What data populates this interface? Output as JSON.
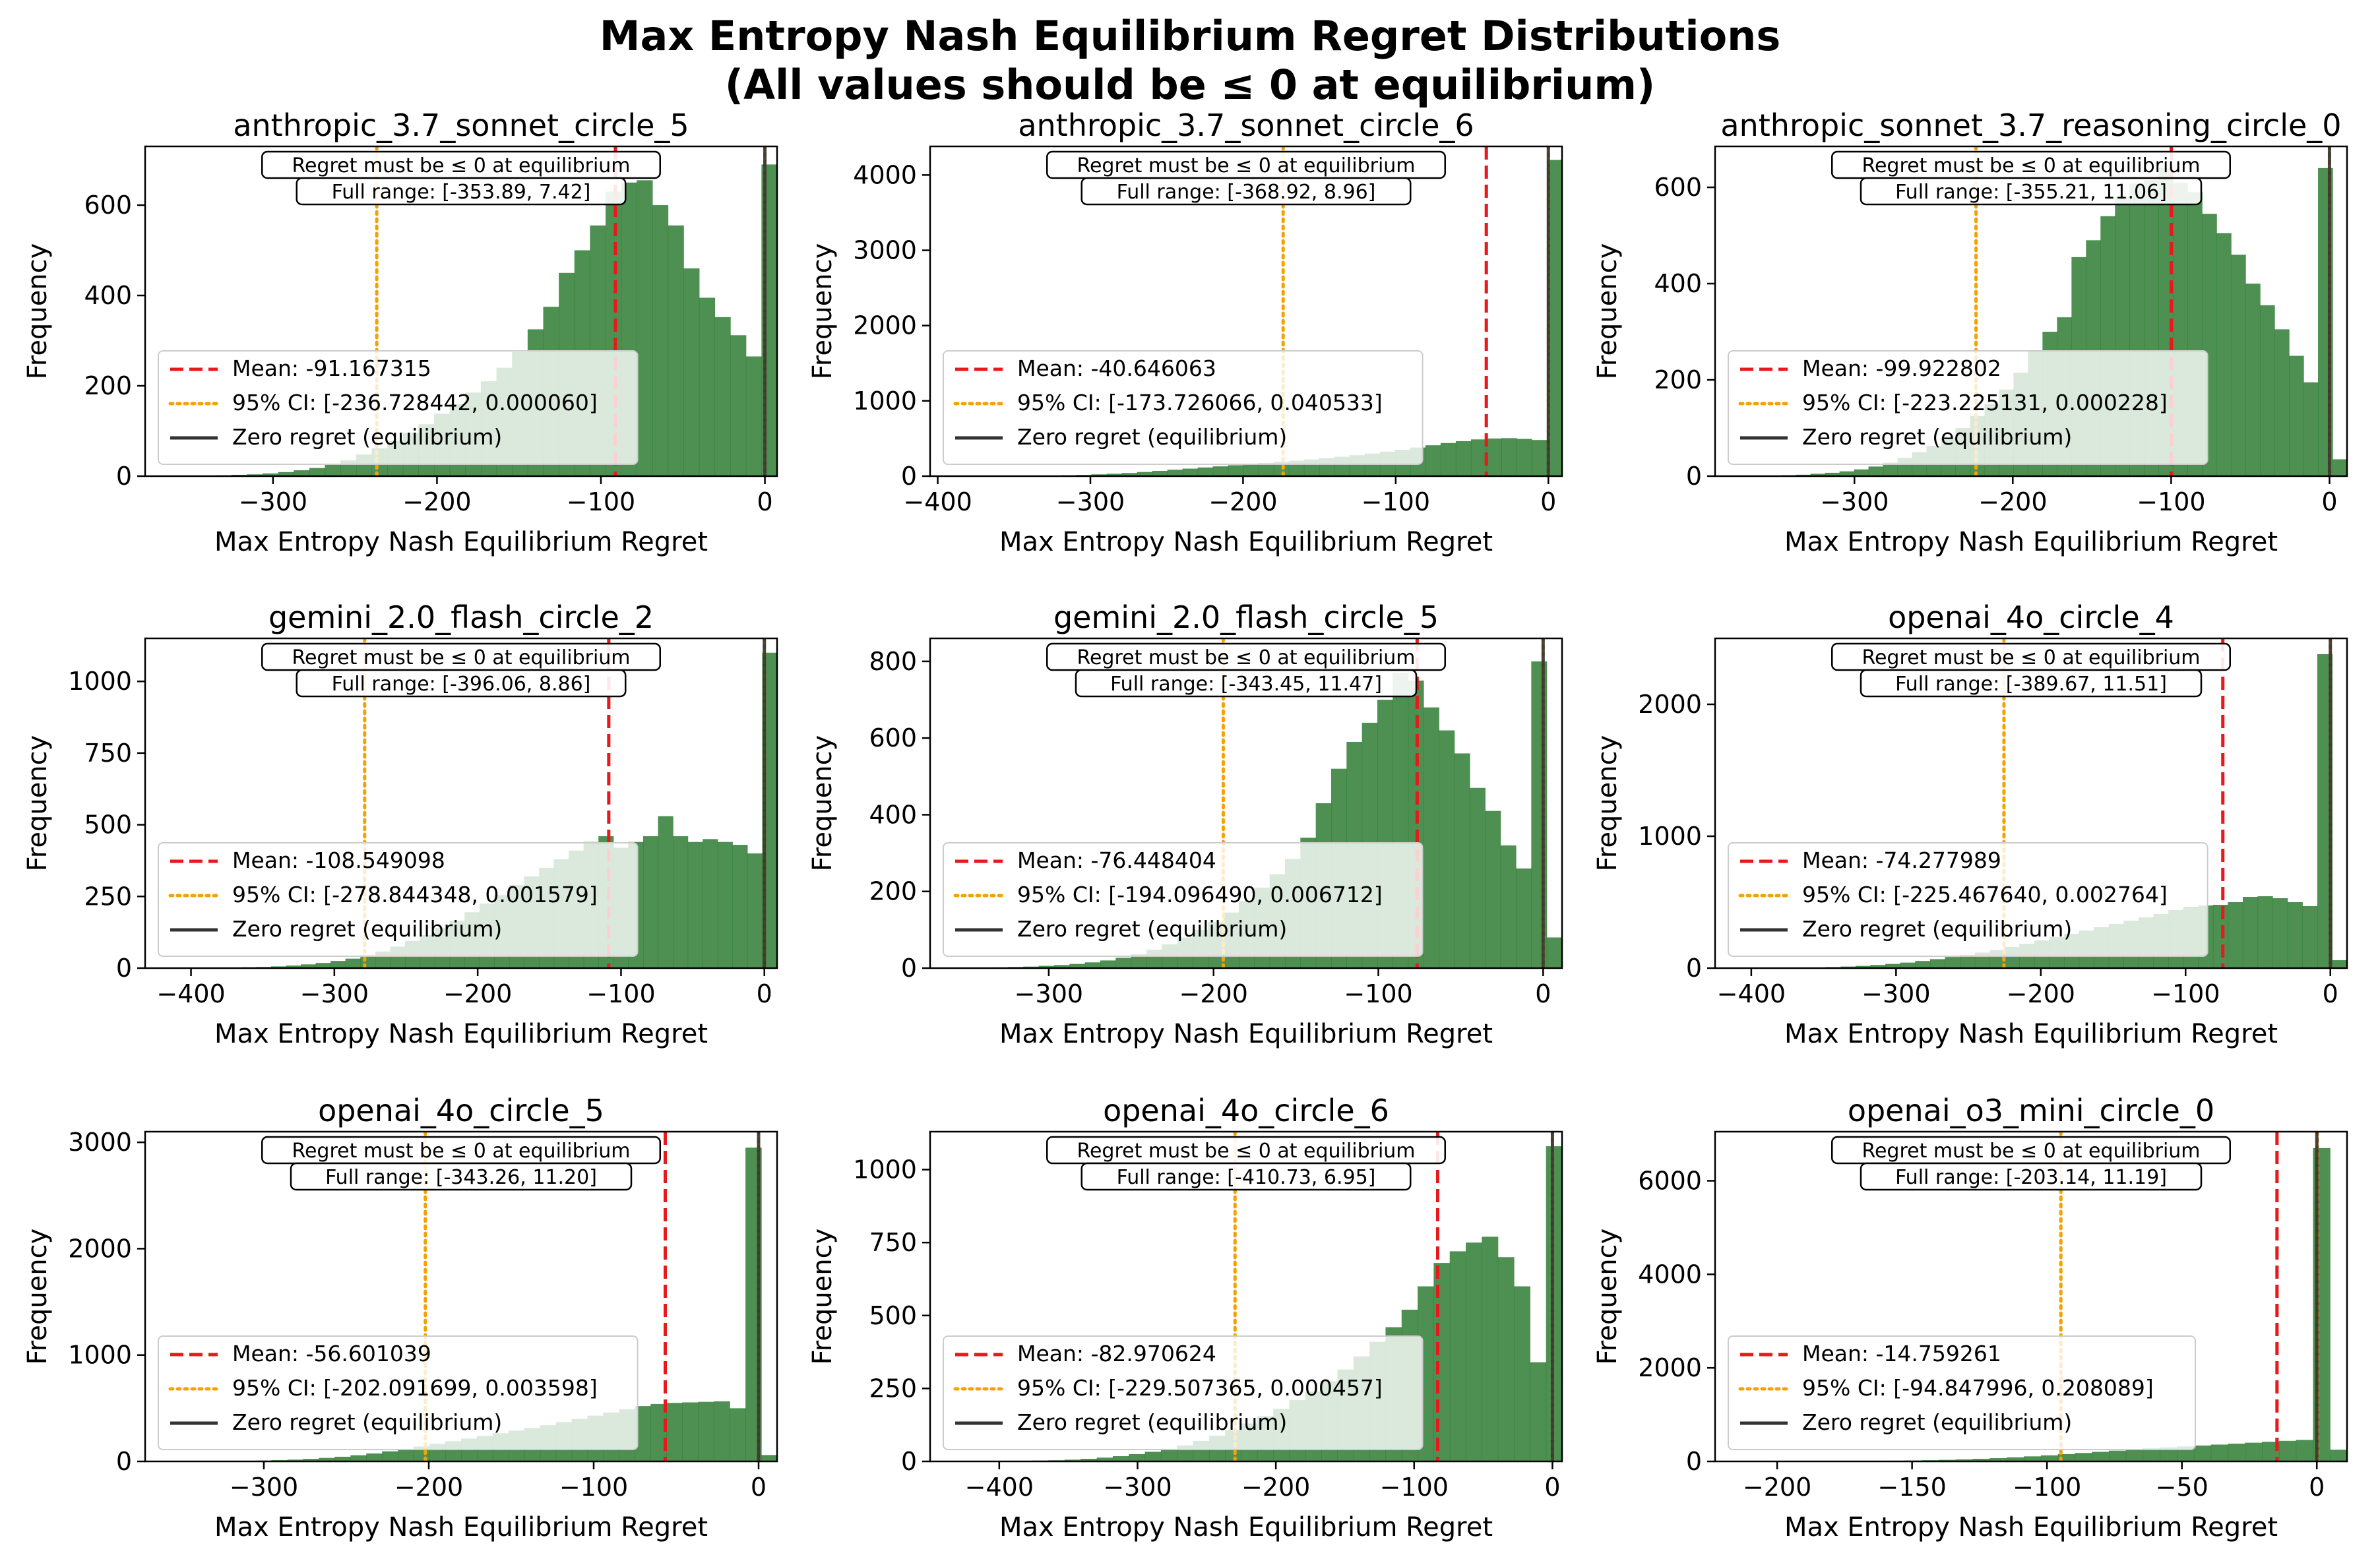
{
  "title": "Max Entropy Nash Equilibrium Regret Distributions",
  "subtitle": "(All values should be ≤ 0 at equilibrium)",
  "colors": {
    "hist_dark": "#2e7d32",
    "hist_light": "#cfe3cf",
    "mean": "#e8181b",
    "ci": "#f5a100",
    "zero": "#333333",
    "frame": "#000000"
  },
  "chart_data": [
    {
      "type": "histogram",
      "title": "anthropic_3.7_sonnet_circle_5",
      "xlabel": "Max Entropy Nash Equilibrium Regret",
      "ylabel": "Frequency",
      "xlim": [
        -378,
        7.42
      ],
      "ylim": [
        0,
        730
      ],
      "xticks": [
        -300,
        -200,
        -100,
        0
      ],
      "xtick_labels": [
        "−300",
        "−200",
        "−100",
        "0"
      ],
      "yticks": [
        0,
        200,
        400,
        600
      ],
      "ytick_labels": [
        "0",
        "200",
        "400",
        "600"
      ],
      "bins": {
        "start": -353.89,
        "end": 7.42,
        "values": [
          1,
          1,
          2,
          3,
          4,
          6,
          9,
          13,
          18,
          25,
          35,
          48,
          62,
          78,
          96,
          115,
          138,
          160,
          185,
          210,
          240,
          275,
          325,
          375,
          450,
          500,
          555,
          630,
          650,
          655,
          600,
          555,
          460,
          395,
          352,
          312,
          265,
          690
        ]
      },
      "mean": -91.167315,
      "ci": [
        -236.728442,
        6e-05
      ],
      "annotation": [
        "Regret must be ≤ 0 at equilibrium",
        "Full range: [-353.89, 7.42]"
      ],
      "legend": [
        "Mean: -91.167315",
        "95% CI: [-236.728442, 0.000060]",
        "Zero regret (equilibrium)"
      ]
    },
    {
      "type": "histogram",
      "title": "anthropic_3.7_sonnet_circle_6",
      "xlabel": "Max Entropy Nash Equilibrium Regret",
      "ylabel": "Frequency",
      "xlim": [
        -405,
        8.96
      ],
      "ylim": [
        0,
        4380
      ],
      "xticks": [
        -400,
        -300,
        -200,
        -100,
        0
      ],
      "xtick_labels": [
        "−400",
        "−300",
        "−200",
        "−100",
        "0"
      ],
      "yticks": [
        0,
        1000,
        2000,
        3000,
        4000
      ],
      "ytick_labels": [
        "0",
        "1000",
        "2000",
        "3000",
        "4000"
      ],
      "bins": {
        "start": -368.92,
        "end": 8.96,
        "values": [
          1,
          2,
          3,
          5,
          8,
          12,
          17,
          24,
          32,
          42,
          55,
          70,
          85,
          100,
          115,
          130,
          145,
          160,
          175,
          190,
          205,
          222,
          240,
          258,
          278,
          300,
          325,
          350,
          380,
          410,
          440,
          465,
          488,
          500,
          505,
          495,
          480,
          4200
        ]
      },
      "mean": -40.646063,
      "ci": [
        -173.726066,
        0.040533
      ],
      "annotation": [
        "Regret must be ≤ 0 at equilibrium",
        "Full range: [-368.92, 8.96]"
      ],
      "legend": [
        "Mean: -40.646063",
        "95% CI: [-173.726066, 0.040533]",
        "Zero regret (equilibrium)"
      ]
    },
    {
      "type": "histogram",
      "title": "anthropic_sonnet_3.7_reasoning_circle_0",
      "xlabel": "Max Entropy Nash Equilibrium Regret",
      "ylabel": "Frequency",
      "xlim": [
        -388,
        11.06
      ],
      "ylim": [
        0,
        685
      ],
      "xticks": [
        -300,
        -200,
        -100,
        0
      ],
      "xtick_labels": [
        "−300",
        "−200",
        "−100",
        "0"
      ],
      "bins": {
        "start": -355.21,
        "end": 11.06,
        "values": [
          1,
          2,
          3,
          5,
          7,
          10,
          14,
          20,
          28,
          38,
          50,
          63,
          80,
          100,
          125,
          150,
          180,
          215,
          260,
          300,
          330,
          455,
          490,
          540,
          580,
          608,
          615,
          640,
          610,
          590,
          545,
          505,
          460,
          400,
          355,
          305,
          250,
          195,
          640,
          35
        ]
      },
      "yticks": [
        0,
        200,
        400,
        600
      ],
      "ytick_labels": [
        "0",
        "200",
        "400",
        "600"
      ],
      "mean": -99.922802,
      "ci": [
        -223.225131,
        0.000228
      ],
      "annotation": [
        "Regret must be ≤ 0 at equilibrium",
        "Full range: [-355.21, 11.06]"
      ],
      "legend": [
        "Mean: -99.922802",
        "95% CI: [-223.225131, 0.000228]",
        "Zero regret (equilibrium)"
      ]
    },
    {
      "type": "histogram",
      "title": "gemini_2.0_flash_circle_2",
      "xlabel": "Max Entropy Nash Equilibrium Regret",
      "ylabel": "Frequency",
      "xlim": [
        -432,
        8.86
      ],
      "ylim": [
        0,
        1150
      ],
      "xticks": [
        -400,
        -300,
        -200,
        -100,
        0
      ],
      "xtick_labels": [
        "−400",
        "−300",
        "−200",
        "−100",
        "0"
      ],
      "yticks": [
        0,
        250,
        500,
        750,
        1000
      ],
      "ytick_labels": [
        "0",
        "250",
        "500",
        "750",
        "1000"
      ],
      "bins": {
        "start": -396.06,
        "end": 8.86,
        "values": [
          1,
          1,
          2,
          3,
          4,
          6,
          9,
          13,
          18,
          25,
          33,
          45,
          58,
          75,
          95,
          115,
          140,
          165,
          195,
          225,
          255,
          290,
          320,
          350,
          380,
          410,
          440,
          460,
          420,
          440,
          460,
          530,
          460,
          440,
          450,
          440,
          430,
          400,
          1100
        ]
      },
      "mean": -108.549098,
      "ci": [
        -278.844348,
        0.001579
      ],
      "annotation": [
        "Regret must be ≤ 0 at equilibrium",
        "Full range: [-396.06, 8.86]"
      ],
      "legend": [
        "Mean: -108.549098",
        "95% CI: [-278.844348, 0.001579]",
        "Zero regret (equilibrium)"
      ]
    },
    {
      "type": "histogram",
      "title": "gemini_2.0_flash_circle_5",
      "xlabel": "Max Entropy Nash Equilibrium Regret",
      "ylabel": "Frequency",
      "xlim": [
        -372,
        11.47
      ],
      "ylim": [
        0,
        860
      ],
      "xticks": [
        -300,
        -200,
        -100,
        0
      ],
      "xtick_labels": [
        "−300",
        "−200",
        "−100",
        "0"
      ],
      "yticks": [
        0,
        200,
        400,
        600,
        800
      ],
      "ytick_labels": [
        "0",
        "200",
        "400",
        "600",
        "800"
      ],
      "bins": {
        "start": -343.45,
        "end": 11.47,
        "values": [
          1,
          2,
          3,
          4,
          6,
          8,
          11,
          15,
          20,
          27,
          36,
          48,
          62,
          80,
          100,
          120,
          145,
          175,
          210,
          245,
          285,
          340,
          430,
          520,
          590,
          640,
          700,
          770,
          750,
          680,
          620,
          560,
          470,
          410,
          320,
          260,
          800,
          80
        ]
      },
      "mean": -76.448404,
      "ci": [
        -194.09649,
        0.006712
      ],
      "annotation": [
        "Regret must be ≤ 0 at equilibrium",
        "Full range: [-343.45, 11.47]"
      ],
      "legend": [
        "Mean: -76.448404",
        "95% CI: [-194.096490, 0.006712]",
        "Zero regret (equilibrium)"
      ]
    },
    {
      "type": "histogram",
      "title": "openai_4o_circle_4",
      "xlabel": "Max Entropy Nash Equilibrium Regret",
      "ylabel": "Frequency",
      "xlim": [
        -425,
        11.51
      ],
      "ylim": [
        0,
        2500
      ],
      "xticks": [
        -400,
        -300,
        -200,
        -100,
        0
      ],
      "xtick_labels": [
        "−400",
        "−300",
        "−200",
        "−100",
        "0"
      ],
      "yticks": [
        0,
        1000,
        2000
      ],
      "ytick_labels": [
        "0",
        "1000",
        "2000"
      ],
      "bins": {
        "start": -389.67,
        "end": 11.51,
        "values": [
          1,
          2,
          3,
          5,
          8,
          12,
          17,
          24,
          32,
          42,
          54,
          68,
          84,
          100,
          118,
          138,
          160,
          185,
          210,
          235,
          260,
          285,
          310,
          335,
          360,
          385,
          410,
          440,
          465,
          475,
          480,
          500,
          540,
          545,
          530,
          500,
          470,
          2380,
          60
        ]
      },
      "mean": -74.277989,
      "ci": [
        -225.46764,
        0.002764
      ],
      "annotation": [
        "Regret must be ≤ 0 at equilibrium",
        "Full range: [-389.67, 11.51]"
      ],
      "legend": [
        "Mean: -74.277989",
        "95% CI: [-225.467640, 0.002764]",
        "Zero regret (equilibrium)"
      ]
    },
    {
      "type": "histogram",
      "title": "openai_4o_circle_5",
      "xlabel": "Max Entropy Nash Equilibrium Regret",
      "ylabel": "Frequency",
      "xlim": [
        -372,
        11.2
      ],
      "ylim": [
        0,
        3100
      ],
      "xticks": [
        -300,
        -200,
        -100,
        0
      ],
      "xtick_labels": [
        "−300",
        "−200",
        "−100",
        "0"
      ],
      "yticks": [
        0,
        1000,
        2000,
        3000
      ],
      "ytick_labels": [
        "0",
        "1000",
        "2000",
        "3000"
      ],
      "bins": {
        "start": -343.26,
        "end": 11.2,
        "values": [
          1,
          2,
          3,
          5,
          8,
          12,
          17,
          24,
          33,
          44,
          58,
          75,
          95,
          118,
          140,
          165,
          190,
          215,
          240,
          265,
          290,
          315,
          340,
          370,
          400,
          430,
          460,
          490,
          520,
          540,
          550,
          555,
          560,
          565,
          500,
          2950,
          60
        ]
      },
      "mean": -56.601039,
      "ci": [
        -202.091699,
        0.003598
      ],
      "annotation": [
        "Regret must be ≤ 0 at equilibrium",
        "Full range: [-343.26, 11.20]"
      ],
      "legend": [
        "Mean: -56.601039",
        "95% CI: [-202.091699, 0.003598]",
        "Zero regret (equilibrium)"
      ]
    },
    {
      "type": "histogram",
      "title": "openai_4o_circle_6",
      "xlabel": "Max Entropy Nash Equilibrium Regret",
      "ylabel": "Frequency",
      "xlim": [
        -450,
        6.95
      ],
      "ylim": [
        0,
        1130
      ],
      "xticks": [
        -400,
        -300,
        -200,
        -100,
        0
      ],
      "xtick_labels": [
        "−400",
        "−300",
        "−200",
        "−100",
        "0"
      ],
      "yticks": [
        0,
        250,
        500,
        750,
        1000
      ],
      "ytick_labels": [
        "0",
        "250",
        "500",
        "750",
        "1000"
      ],
      "bins": {
        "start": -410.73,
        "end": 6.95,
        "values": [
          1,
          1,
          2,
          3,
          4,
          6,
          9,
          13,
          18,
          25,
          33,
          43,
          55,
          70,
          88,
          108,
          130,
          155,
          180,
          210,
          240,
          275,
          315,
          360,
          410,
          460,
          520,
          600,
          680,
          720,
          750,
          770,
          700,
          600,
          340,
          1080
        ]
      },
      "mean": -82.970624,
      "ci": [
        -229.507365,
        0.000457
      ],
      "annotation": [
        "Regret must be ≤ 0 at equilibrium",
        "Full range: [-410.73, 6.95]"
      ],
      "legend": [
        "Mean: -82.970624",
        "95% CI: [-229.507365, 0.000457]",
        "Zero regret (equilibrium)"
      ]
    },
    {
      "type": "histogram",
      "title": "openai_o3_mini_circle_0",
      "xlabel": "Max Entropy Nash Equilibrium Regret",
      "ylabel": "Frequency",
      "xlim": [
        -223,
        11.19
      ],
      "ylim": [
        0,
        7050
      ],
      "xticks": [
        -200,
        -150,
        -100,
        -50,
        0
      ],
      "xtick_labels": [
        "−200",
        "−150",
        "−100",
        "−50",
        "0"
      ],
      "yticks": [
        0,
        2000,
        4000,
        6000
      ],
      "ytick_labels": [
        "0",
        "2000",
        "4000",
        "6000"
      ],
      "bins": {
        "start": -203.14,
        "end": 11.19,
        "values": [
          1,
          2,
          3,
          4,
          6,
          8,
          11,
          15,
          20,
          26,
          34,
          44,
          56,
          70,
          88,
          108,
          130,
          155,
          180,
          205,
          230,
          255,
          280,
          300,
          320,
          340,
          360,
          380,
          400,
          420,
          440,
          460,
          6700,
          250
        ]
      },
      "mean": -14.759261,
      "ci": [
        -94.847996,
        0.208089
      ],
      "annotation": [
        "Regret must be ≤ 0 at equilibrium",
        "Full range: [-203.14, 11.19]"
      ],
      "legend": [
        "Mean: -14.759261",
        "95% CI: [-94.847996, 0.208089]",
        "Zero regret (equilibrium)"
      ]
    }
  ]
}
